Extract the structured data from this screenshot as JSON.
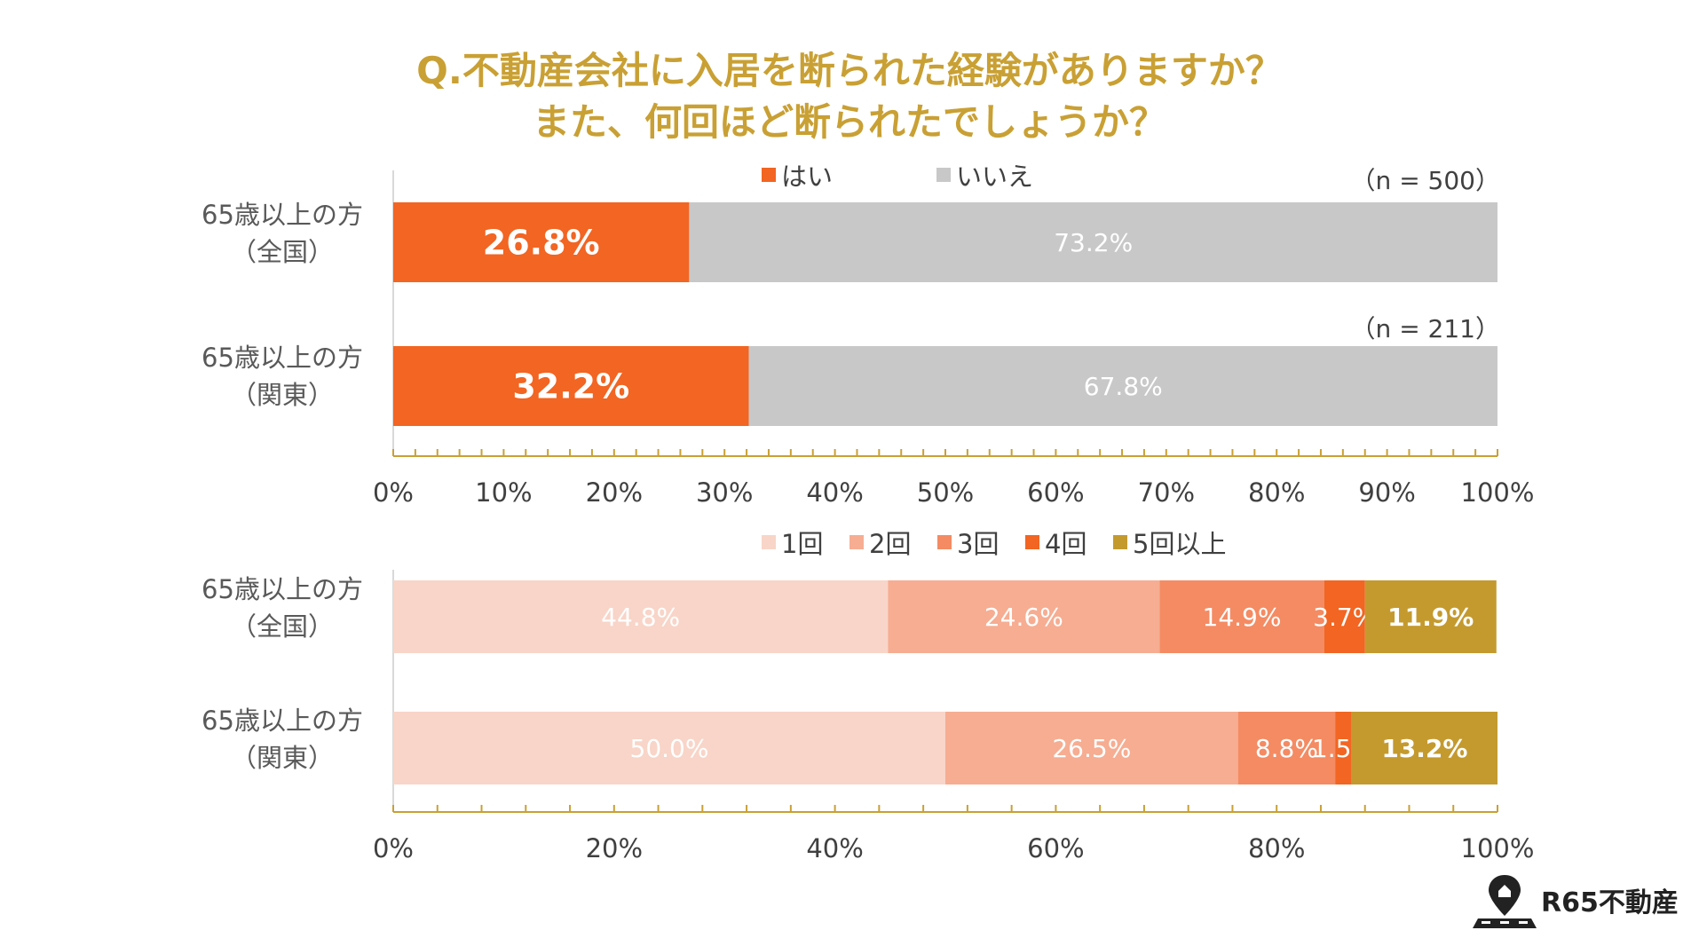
{
  "title": {
    "line1": "Q.不動産会社に入居を断られた経験がありますか？",
    "line2": "また、何回ほど断られたでしょうか？"
  },
  "colors": {
    "title": "#c9a034",
    "yes": "#f26522",
    "no": "#c8c8c8",
    "c1": "#f8d5c8",
    "c2": "#f6ad92",
    "c3": "#f48b63",
    "c4": "#f26522",
    "c5": "#c49a2f",
    "axis": "#c9a034"
  },
  "chart_data": [
    {
      "type": "bar",
      "orientation": "horizontal",
      "stacked": true,
      "categories": [
        "65歳以上の方\n（全国）",
        "65歳以上の方\n（関東）"
      ],
      "series": [
        {
          "name": "はい",
          "values": [
            26.8,
            32.2
          ],
          "labels": [
            "26.8%",
            "32.2%"
          ]
        },
        {
          "name": "いいえ",
          "values": [
            73.2,
            67.8
          ],
          "labels": [
            "73.2%",
            "67.8%"
          ]
        }
      ],
      "sample_sizes": [
        "（n = 500）",
        "（n = 211）"
      ],
      "xlim": [
        0,
        100
      ],
      "xticks": [
        "0%",
        "10%",
        "20%",
        "30%",
        "40%",
        "50%",
        "60%",
        "70%",
        "80%",
        "90%",
        "100%"
      ],
      "legend_position": "top-center"
    },
    {
      "type": "bar",
      "orientation": "horizontal",
      "stacked": true,
      "categories": [
        "65歳以上の方\n（全国）",
        "65歳以上の方\n（関東）"
      ],
      "series": [
        {
          "name": "1回",
          "values": [
            44.8,
            50.0
          ],
          "labels": [
            "44.8%",
            "50.0%"
          ]
        },
        {
          "name": "2回",
          "values": [
            24.6,
            26.5
          ],
          "labels": [
            "24.6%",
            "26.5%"
          ]
        },
        {
          "name": "3回",
          "values": [
            14.9,
            8.8
          ],
          "labels": [
            "14.9%",
            "8.8%"
          ]
        },
        {
          "name": "4回",
          "values": [
            3.7,
            1.5
          ],
          "labels": [
            "3.7%",
            "1.5%"
          ]
        },
        {
          "name": "5回以上",
          "values": [
            11.9,
            13.2
          ],
          "labels": [
            "11.9%",
            "13.2%"
          ]
        }
      ],
      "xlim": [
        0,
        100
      ],
      "xticks": [
        "0%",
        "20%",
        "40%",
        "60%",
        "80%",
        "100%"
      ],
      "legend_position": "top-center"
    }
  ],
  "brand": {
    "name": "R65不動産"
  }
}
